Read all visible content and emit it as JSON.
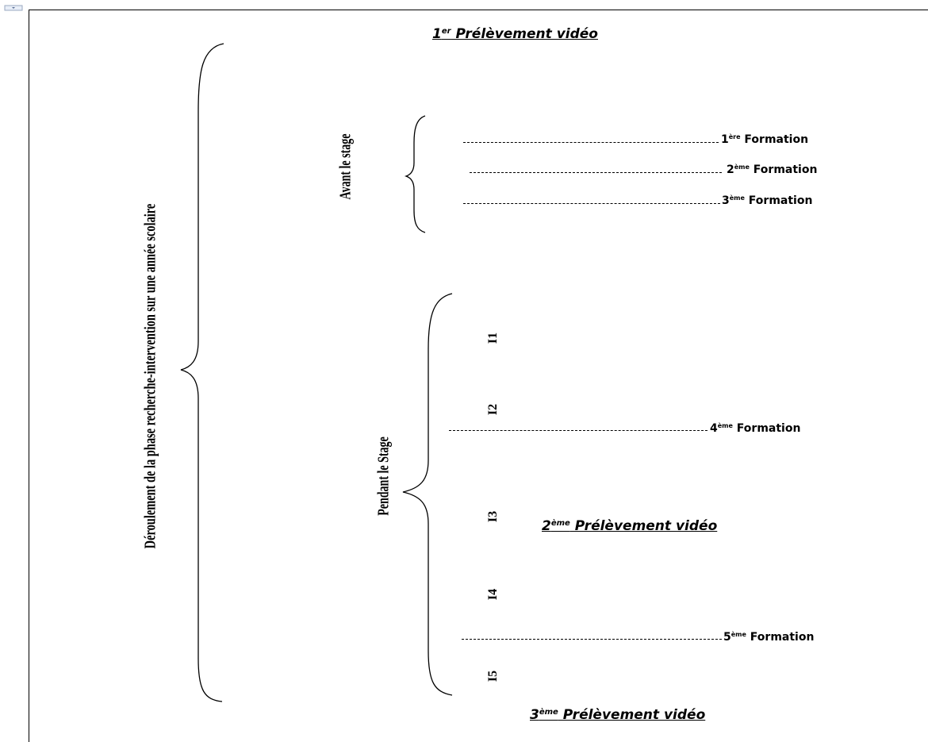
{
  "main_label": "Déroulement  de la phase recherche-intervention  sur une année scolaire",
  "group_before": "Avant le stage",
  "group_during": "Pendant le Stage",
  "videos": [
    {
      "num": "1",
      "sup": "er",
      "text": " Prélèvement  vidéo"
    },
    {
      "num": "2",
      "sup": "ème",
      "text": " Prélèvement  vidéo"
    },
    {
      "num": "3",
      "sup": "ème",
      "text": " Prélèvement  vidéo"
    }
  ],
  "formations": [
    {
      "num": "1",
      "sup": "ère",
      "text": " Formation"
    },
    {
      "num": "2",
      "sup": "ème",
      "text": " Formation"
    },
    {
      "num": "3",
      "sup": "ème",
      "text": " Formation"
    },
    {
      "num": "4",
      "sup": "ème",
      "text": " Formation"
    },
    {
      "num": "5",
      "sup": "ème",
      "text": " Formation"
    }
  ],
  "interventions": [
    "I1",
    "I2",
    "I3",
    "I4",
    "I5"
  ]
}
